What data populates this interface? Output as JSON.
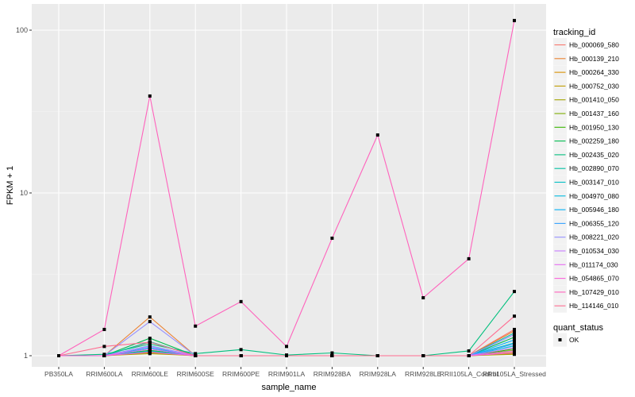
{
  "chart_data": {
    "type": "line",
    "title": "",
    "xlabel": "sample_name",
    "ylabel": "FPKM + 1",
    "yscale": "log10",
    "ylim": [
      0.95,
      125
    ],
    "yticks": [
      1,
      10,
      100
    ],
    "ytick_labels": [
      "1",
      "10",
      "100"
    ],
    "grid": true,
    "legend_placement": "right",
    "categories": [
      "PB350LA",
      "RRIM600LA",
      "RRIM600LE",
      "RRIM600SE",
      "RRIM600PE",
      "RRIM901LA",
      "RRIM928BA",
      "RRIM928LA",
      "RRIM928LE",
      "RRII105LA_Control",
      "RRII105LA_Stressed"
    ],
    "legend_title": "tracking_id",
    "series": [
      {
        "name": "Hb_000069_580",
        "color": "#F8766D",
        "values": [
          1,
          1,
          1.21,
          1,
          1,
          1,
          1,
          1,
          1,
          1,
          1.45
        ]
      },
      {
        "name": "Hb_000139_210",
        "color": "#EA8331",
        "values": [
          1,
          1,
          1.73,
          1,
          1,
          1,
          1,
          1,
          1,
          1,
          1.42
        ]
      },
      {
        "name": "Hb_000264_330",
        "color": "#D89000",
        "values": [
          1,
          1,
          1.05,
          1,
          1,
          1,
          1,
          1,
          1,
          1,
          1.05
        ]
      },
      {
        "name": "Hb_000752_030",
        "color": "#C09B00",
        "values": [
          1,
          1,
          1.04,
          1,
          1,
          1,
          1,
          1,
          1,
          1,
          1.03
        ]
      },
      {
        "name": "Hb_001410_050",
        "color": "#A3A500",
        "values": [
          1,
          1,
          1.03,
          1,
          1,
          1,
          1,
          1,
          1,
          1,
          1.02
        ]
      },
      {
        "name": "Hb_001437_160",
        "color": "#7CAE00",
        "values": [
          1,
          1,
          1.06,
          1,
          1,
          1,
          1,
          1,
          1,
          1,
          1.08
        ]
      },
      {
        "name": "Hb_001950_130",
        "color": "#39B600",
        "values": [
          1,
          1,
          1.08,
          1,
          1,
          1,
          1,
          1,
          1,
          1,
          1.1
        ]
      },
      {
        "name": "Hb_002259_180",
        "color": "#00BB4E",
        "values": [
          1,
          1,
          1.28,
          1,
          1,
          1,
          1,
          1,
          1,
          1,
          1.3
        ]
      },
      {
        "name": "Hb_002435_020",
        "color": "#00BF7D",
        "values": [
          1,
          1.02,
          1.18,
          1.03,
          1.09,
          1.01,
          1.04,
          1,
          1,
          1.07,
          2.48
        ]
      },
      {
        "name": "Hb_002890_070",
        "color": "#00C1A3",
        "values": [
          1,
          1,
          1.22,
          1,
          1,
          1,
          1,
          1,
          1,
          1,
          1.38
        ]
      },
      {
        "name": "Hb_003147_010",
        "color": "#00BFC4",
        "values": [
          1,
          1,
          1.1,
          1,
          1,
          1,
          1,
          1,
          1,
          1,
          1.2
        ]
      },
      {
        "name": "Hb_004970_080",
        "color": "#00BAE0",
        "values": [
          1,
          1,
          1.07,
          1,
          1,
          1,
          1,
          1,
          1,
          1,
          1.15
        ]
      },
      {
        "name": "Hb_005946_180",
        "color": "#00B0F6",
        "values": [
          1,
          1,
          1.12,
          1,
          1,
          1,
          1,
          1,
          1,
          1,
          1.25
        ]
      },
      {
        "name": "Hb_006355_120",
        "color": "#35A2FF",
        "values": [
          1,
          1,
          1.15,
          1,
          1,
          1,
          1,
          1,
          1,
          1,
          1.18
        ]
      },
      {
        "name": "Hb_008221_020",
        "color": "#9590FF",
        "values": [
          1,
          1,
          1.62,
          1,
          1,
          1,
          1,
          1,
          1,
          1,
          1.35
        ]
      },
      {
        "name": "Hb_010534_030",
        "color": "#C77CFF",
        "values": [
          1,
          1,
          1.14,
          1,
          1,
          1,
          1,
          1,
          1,
          1,
          1.12
        ]
      },
      {
        "name": "Hb_011174_030",
        "color": "#E76BF3",
        "values": [
          1,
          1,
          1.1,
          1,
          1,
          1,
          1,
          1,
          1,
          1,
          1.07
        ]
      },
      {
        "name": "Hb_054865_070",
        "color": "#FA62DB",
        "values": [
          1,
          1,
          1.05,
          1,
          1,
          1,
          1,
          1,
          1,
          1,
          1.04
        ]
      },
      {
        "name": "Hb_107429_010",
        "color": "#FF62BC",
        "values": [
          1,
          1.45,
          39.4,
          1.52,
          2.15,
          1.14,
          5.27,
          22.7,
          2.27,
          3.94,
          114.6
        ]
      },
      {
        "name": "Hb_114146_010",
        "color": "#FF6C91",
        "values": [
          1,
          1.14,
          1.21,
          1,
          1,
          1,
          1,
          1,
          1,
          1,
          1.75
        ]
      }
    ],
    "shape_legend": {
      "title": "quant_status",
      "items": [
        "OK"
      ]
    }
  }
}
